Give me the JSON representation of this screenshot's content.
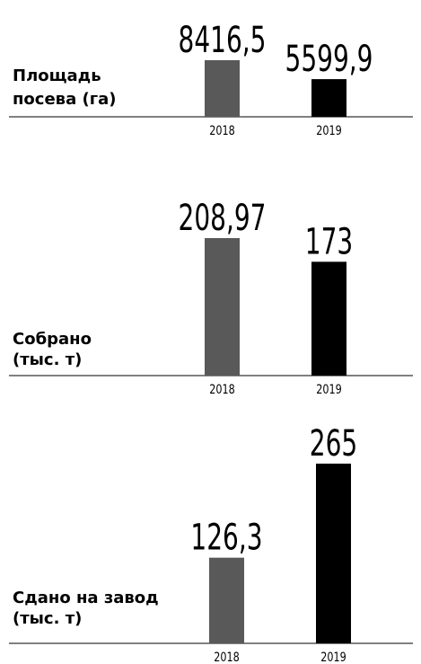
{
  "chart_data": [
    {
      "type": "bar",
      "label": [
        "Площадь",
        "посева (га)"
      ],
      "categories": [
        "2018",
        "2019"
      ],
      "values": [
        8416.5,
        5599.9
      ],
      "value_labels": [
        "8416,5",
        "5599,9"
      ],
      "colors": [
        "#595959",
        "#000000"
      ]
    },
    {
      "type": "bar",
      "label": [
        "Собрано",
        "(тыс. т)"
      ],
      "categories": [
        "2018",
        "2019"
      ],
      "values": [
        208.97,
        173
      ],
      "value_labels": [
        "208,97",
        "173"
      ],
      "colors": [
        "#595959",
        "#000000"
      ]
    },
    {
      "type": "bar",
      "label": [
        "Сдано на завод",
        "(тыс. т)"
      ],
      "categories": [
        "2018",
        "2019"
      ],
      "values": [
        126.3,
        265
      ],
      "value_labels": [
        "126,3",
        "265"
      ],
      "colors": [
        "#595959",
        "#000000"
      ]
    }
  ]
}
